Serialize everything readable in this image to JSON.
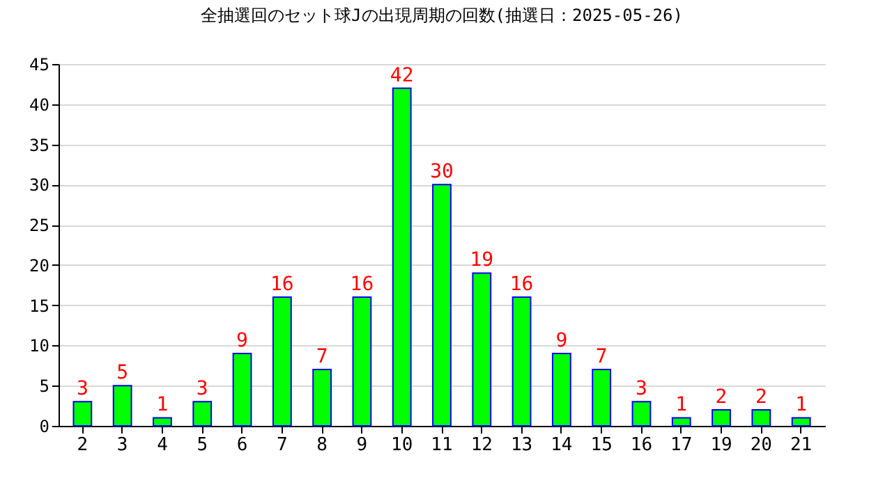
{
  "chart_data": {
    "type": "bar",
    "title": "全抽選回のセット球Jの出現周期の回数(抽選日：2025-05-26)",
    "categories": [
      "2",
      "3",
      "4",
      "5",
      "6",
      "7",
      "8",
      "9",
      "10",
      "11",
      "12",
      "13",
      "14",
      "15",
      "16",
      "17",
      "19",
      "20",
      "21"
    ],
    "values": [
      3,
      5,
      1,
      3,
      9,
      16,
      7,
      16,
      42,
      30,
      19,
      16,
      9,
      7,
      3,
      1,
      2,
      2,
      1
    ],
    "color": "#00ff00",
    "ylim": [
      0,
      45
    ],
    "yticks": [
      0,
      5,
      10,
      15,
      20,
      25,
      30,
      35,
      40,
      45
    ],
    "grid": "y",
    "data_labels": true
  }
}
